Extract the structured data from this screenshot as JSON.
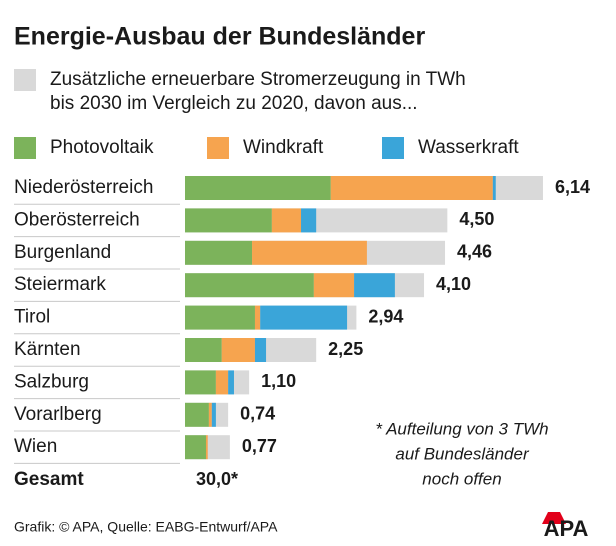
{
  "chart_data": {
    "type": "stacked-bar-overlay",
    "title": "Energie-Ausbau der Bundesländer",
    "total_series": {
      "name": [
        "Zusätzliche erneuerbare Stromerzeugung in TWh",
        "bis 2030 im Vergleich zu 2020, davon aus..."
      ],
      "color": "#d9d9d9",
      "values": [
        6.14,
        4.5,
        4.46,
        4.1,
        2.94,
        2.25,
        1.1,
        0.74,
        0.77
      ],
      "value_labels": [
        "6,14",
        "4,50",
        "4,46",
        "4,10",
        "2,94",
        "2,25",
        "1,10",
        "0,74",
        "0,77"
      ]
    },
    "categories": [
      "Niederösterreich",
      "Oberösterreich",
      "Burgenland",
      "Steiermark",
      "Tirol",
      "Kärnten",
      "Salzburg",
      "Vorarlberg",
      "Wien"
    ],
    "series": [
      {
        "name": "Photovoltaik",
        "color": "#7cb35b",
        "values": [
          2.5,
          1.49,
          1.15,
          2.21,
          1.2,
          0.63,
          0.53,
          0.41,
          0.36
        ]
      },
      {
        "name": "Windkraft",
        "color": "#f6a44f",
        "values": [
          2.78,
          0.5,
          1.97,
          0.69,
          0.09,
          0.57,
          0.21,
          0.05,
          0.03
        ]
      },
      {
        "name": "Wasserkraft",
        "color": "#3aa5d9",
        "values": [
          0.05,
          0.26,
          0,
          0.7,
          1.49,
          0.19,
          0.1,
          0.07,
          0
        ]
      }
    ],
    "total": {
      "name": "Gesamt",
      "value": 30.0,
      "value_label": "30,0*"
    },
    "footnote": [
      "* Aufteilung von 3 TWh",
      "auf Bundesländer",
      "noch offen"
    ],
    "source": "Grafik: © APA, Quelle: EABG-Entwurf/APA",
    "logo": "APA"
  }
}
